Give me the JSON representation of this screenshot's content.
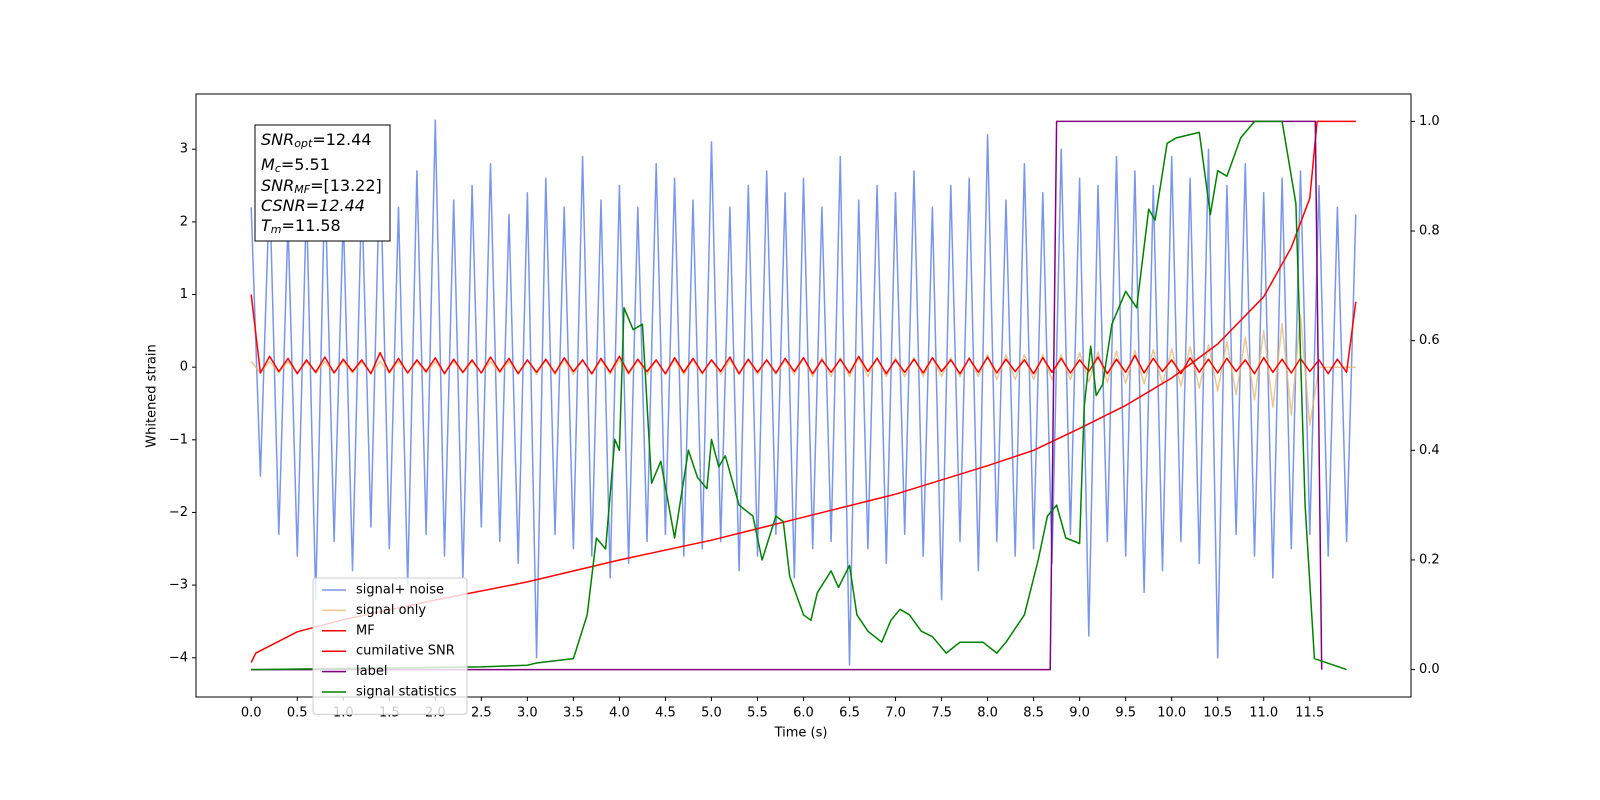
{
  "chart_data": {
    "type": "line",
    "xlabel": "Time (s)",
    "ylabel": "Whitened strain",
    "xlim": [
      -0.6,
      12.6
    ],
    "ylim": [
      -4.54,
      3.76
    ],
    "y2lim": [
      -0.05,
      1.05
    ],
    "xticks": [
      {
        "value": 0,
        "label": "0.0"
      },
      0.5,
      {
        "value": 1,
        "label": "1.0"
      },
      1.5,
      {
        "value": 2,
        "label": "2.0"
      },
      2.5,
      {
        "value": 3,
        "label": "3.0"
      },
      3.5,
      {
        "value": 4,
        "label": "4.0"
      },
      4.5,
      {
        "value": 5,
        "label": "5.0"
      },
      5.5,
      {
        "value": 6,
        "label": "6.0"
      },
      6.5,
      {
        "value": 7,
        "label": "7.0"
      },
      7.5,
      {
        "value": 8,
        "label": "8.0"
      },
      8.5,
      {
        "value": 9,
        "label": "9.0"
      },
      9.5,
      {
        "value": 10,
        "label": "10.0"
      },
      10.5,
      {
        "value": 11,
        "label": "11.0"
      },
      11.5
    ],
    "yticks": [
      {
        "value": -4,
        "label": "−4"
      },
      {
        "value": -3,
        "label": "−3"
      },
      {
        "value": -2,
        "label": "−2"
      },
      {
        "value": -1,
        "label": "−1"
      },
      0,
      1,
      2,
      3
    ],
    "y2ticks": [
      {
        "value": 0,
        "label": "0.0"
      },
      0.2,
      0.4,
      0.6,
      0.8,
      {
        "value": 1,
        "label": "1.0"
      }
    ],
    "legend": "lower left",
    "annotation": [
      [
        "SNR",
        "opt",
        "=12.44"
      ],
      [
        "M",
        "c",
        "=5.51"
      ],
      [
        "SNR",
        "MF",
        "=[13.22]"
      ],
      [
        "CSNR=12.44"
      ],
      [
        "T",
        "m",
        "=11.58"
      ]
    ],
    "x": [
      0,
      0.1,
      0.2,
      0.3,
      0.4,
      0.5,
      0.6,
      0.7,
      0.8,
      0.9,
      1,
      1.1,
      1.2,
      1.3,
      1.4,
      1.5,
      1.6,
      1.7,
      1.8,
      1.9,
      2,
      2.1,
      2.2,
      2.3,
      2.4,
      2.5,
      2.6,
      2.7,
      2.8,
      2.9,
      3,
      3.1,
      3.2,
      3.3,
      3.4,
      3.5,
      3.6,
      3.7,
      3.8,
      3.9,
      4,
      4.1,
      4.2,
      4.3,
      4.4,
      4.5,
      4.6,
      4.7,
      4.8,
      4.9,
      5,
      5.1,
      5.2,
      5.3,
      5.4,
      5.5,
      5.6,
      5.7,
      5.8,
      5.9,
      6,
      6.1,
      6.2,
      6.3,
      6.4,
      6.5,
      6.6,
      6.7,
      6.8,
      6.9,
      7,
      7.1,
      7.2,
      7.3,
      7.4,
      7.5,
      7.6,
      7.7,
      7.8,
      7.9,
      8,
      8.1,
      8.2,
      8.3,
      8.4,
      8.5,
      8.6,
      8.7,
      8.8,
      8.9,
      9,
      9.1,
      9.2,
      9.3,
      9.4,
      9.5,
      9.6,
      9.7,
      9.8,
      9.9,
      10,
      10.1,
      10.2,
      10.3,
      10.4,
      10.5,
      10.6,
      10.7,
      10.8,
      10.9,
      11,
      11.1,
      11.2,
      11.3,
      11.4,
      11.5,
      11.6,
      11.7,
      11.8,
      11.9,
      12
    ],
    "series": [
      {
        "name": "signal+ noise",
        "color": "#4169e1",
        "opacity": 0.7,
        "values": [
          2.2,
          -1.5,
          2.5,
          -2.3,
          2.0,
          -2.6,
          2.3,
          -3.2,
          2.6,
          -2.4,
          2.1,
          -2.8,
          2.4,
          -2.2,
          2.9,
          -2.5,
          2.2,
          -3.0,
          2.7,
          -2.3,
          3.4,
          -2.6,
          2.3,
          -2.9,
          2.5,
          -2.2,
          2.8,
          -2.4,
          2.1,
          -2.7,
          2.4,
          -4.0,
          2.6,
          -2.3,
          2.2,
          -2.5,
          2.9,
          -2.6,
          2.3,
          -2.9,
          2.5,
          -2.7,
          2.2,
          -2.4,
          2.8,
          -2.3,
          2.6,
          -2.6,
          2.3,
          -2.5,
          3.1,
          -2.4,
          2.2,
          -2.8,
          2.5,
          -2.6,
          2.7,
          -2.3,
          2.4,
          -2.9,
          2.6,
          -2.5,
          2.2,
          -2.4,
          2.9,
          -4.1,
          2.3,
          -2.5,
          2.5,
          -2.7,
          2.4,
          -2.3,
          2.7,
          -2.6,
          2.2,
          -3.2,
          2.5,
          -2.4,
          2.6,
          -2.8,
          3.2,
          -2.4,
          2.3,
          -2.6,
          2.8,
          -2.5,
          2.4,
          -2.7,
          3.0,
          -2.3,
          2.6,
          -3.7,
          2.5,
          -2.4,
          2.9,
          -2.6,
          2.7,
          -3.1,
          2.5,
          -2.8,
          2.9,
          -2.4,
          2.6,
          -2.7,
          3.0,
          -4.0,
          2.5,
          -2.3,
          2.8,
          -2.6,
          2.4,
          -2.9,
          2.6,
          -2.5,
          2.7,
          -2.3,
          2.5,
          -2.6,
          2.2,
          -2.4,
          2.1
        ]
      },
      {
        "name": "signal only",
        "color": "#e8b46a",
        "opacity": 0.75,
        "values": [
          0.08,
          -0.08,
          0.08,
          -0.08,
          0.08,
          -0.08,
          0.08,
          -0.08,
          0.08,
          -0.08,
          0.08,
          -0.08,
          0.08,
          -0.08,
          0.08,
          -0.08,
          0.08,
          -0.08,
          0.08,
          -0.08,
          0.08,
          -0.08,
          0.08,
          -0.08,
          0.08,
          -0.08,
          0.08,
          -0.08,
          0.08,
          -0.08,
          0.1,
          -0.1,
          0.1,
          -0.1,
          0.1,
          -0.1,
          0.1,
          -0.1,
          0.1,
          -0.1,
          0.1,
          -0.1,
          0.1,
          -0.1,
          0.1,
          -0.1,
          0.1,
          -0.1,
          0.1,
          -0.1,
          0.1,
          -0.1,
          0.1,
          -0.1,
          0.1,
          -0.1,
          0.1,
          -0.1,
          0.1,
          -0.1,
          0.13,
          -0.13,
          0.13,
          -0.13,
          0.13,
          -0.13,
          0.13,
          -0.13,
          0.13,
          -0.13,
          0.13,
          -0.13,
          0.13,
          -0.13,
          0.13,
          -0.13,
          0.13,
          -0.13,
          0.13,
          -0.13,
          0.17,
          -0.17,
          0.17,
          -0.17,
          0.17,
          -0.17,
          0.17,
          -0.17,
          0.17,
          -0.17,
          0.2,
          -0.2,
          0.21,
          -0.21,
          0.22,
          -0.22,
          0.23,
          -0.23,
          0.24,
          -0.24,
          0.25,
          -0.26,
          0.28,
          -0.29,
          0.31,
          -0.33,
          0.35,
          -0.38,
          0.41,
          -0.45,
          0.5,
          -0.55,
          0.6,
          -0.66,
          0.72,
          -0.8,
          0,
          0,
          0,
          0,
          0
        ]
      },
      {
        "name": "MF",
        "color": "#ff0000",
        "opacity": 1,
        "values": [
          1.0,
          -0.08,
          0.15,
          -0.06,
          0.12,
          -0.09,
          0.1,
          -0.07,
          0.14,
          -0.08,
          0.11,
          -0.06,
          0.1,
          -0.09,
          0.2,
          -0.07,
          0.12,
          -0.08,
          0.1,
          -0.06,
          0.13,
          -0.09,
          0.11,
          -0.07,
          0.1,
          -0.08,
          0.14,
          -0.06,
          0.12,
          -0.09,
          0.1,
          -0.07,
          0.11,
          -0.08,
          0.13,
          -0.06,
          0.1,
          -0.09,
          0.12,
          -0.07,
          0.15,
          -0.08,
          0.11,
          -0.06,
          0.1,
          -0.09,
          0.13,
          -0.07,
          0.12,
          -0.08,
          0.1,
          -0.06,
          0.14,
          -0.09,
          0.11,
          -0.07,
          0.1,
          -0.08,
          0.12,
          -0.06,
          0.13,
          -0.09,
          0.1,
          -0.07,
          0.11,
          -0.08,
          0.15,
          -0.06,
          0.12,
          -0.09,
          0.1,
          -0.07,
          0.11,
          -0.08,
          0.13,
          -0.06,
          0.1,
          -0.09,
          0.12,
          -0.07,
          0.14,
          -0.08,
          0.11,
          -0.06,
          0.1,
          -0.09,
          0.13,
          -0.07,
          0.12,
          -0.08,
          0.1,
          -0.06,
          0.14,
          -0.09,
          0.11,
          -0.07,
          0.16,
          -0.08,
          0.12,
          -0.06,
          0.1,
          -0.09,
          0.13,
          -0.07,
          0.11,
          -0.08,
          0.12,
          -0.06,
          0.1,
          -0.09,
          0.13,
          -0.07,
          0.11,
          -0.08,
          0.12,
          -0.06,
          0.1,
          -0.09,
          0.11,
          -0.07,
          0.9
        ]
      },
      {
        "name": "cumilative SNR",
        "color": "#ff0000",
        "axis": "y2",
        "opacity": 1,
        "x": [
          0,
          0.05,
          0.5,
          1,
          2,
          3,
          4,
          5,
          6,
          7,
          8,
          8.5,
          9,
          9.5,
          10,
          10.5,
          11,
          11.3,
          11.5,
          11.58,
          12
        ],
        "values": [
          0.013,
          0.03,
          0.069,
          0.091,
          0.127,
          0.16,
          0.2,
          0.236,
          0.278,
          0.32,
          0.372,
          0.4,
          0.44,
          0.482,
          0.532,
          0.594,
          0.68,
          0.77,
          0.86,
          1.0,
          1.0
        ]
      },
      {
        "name": "label",
        "color": "#800080",
        "axis": "y2",
        "opacity": 1,
        "x": [
          0,
          8.68,
          8.75,
          11.56,
          11.63
        ],
        "values": [
          0,
          0,
          1,
          1,
          0
        ]
      },
      {
        "name": "signal statistics",
        "color": "#008000",
        "axis": "y2",
        "opacity": 1,
        "x": [
          0,
          1,
          2.5,
          3,
          3.1,
          3.5,
          3.65,
          3.75,
          3.85,
          3.95,
          4,
          4.05,
          4.15,
          4.25,
          4.35,
          4.45,
          4.6,
          4.75,
          4.85,
          4.95,
          5,
          5.08,
          5.15,
          5.3,
          5.45,
          5.55,
          5.7,
          5.78,
          5.85,
          6,
          6.08,
          6.15,
          6.3,
          6.38,
          6.5,
          6.58,
          6.7,
          6.85,
          6.95,
          7.05,
          7.15,
          7.28,
          7.4,
          7.55,
          7.7,
          7.95,
          8.1,
          8.2,
          8.4,
          8.55,
          8.65,
          8.75,
          8.85,
          9,
          9.05,
          9.12,
          9.18,
          9.25,
          9.35,
          9.5,
          9.62,
          9.75,
          9.82,
          9.95,
          10.05,
          10.3,
          10.42,
          10.5,
          10.6,
          10.75,
          10.9,
          11.2,
          11.35,
          11.45,
          11.55,
          11.9
        ],
        "values": [
          0,
          0.002,
          0.005,
          0.008,
          0.012,
          0.02,
          0.1,
          0.24,
          0.22,
          0.42,
          0.4,
          0.66,
          0.62,
          0.63,
          0.34,
          0.38,
          0.24,
          0.4,
          0.35,
          0.33,
          0.42,
          0.37,
          0.39,
          0.3,
          0.28,
          0.2,
          0.28,
          0.27,
          0.17,
          0.1,
          0.09,
          0.14,
          0.18,
          0.15,
          0.19,
          0.1,
          0.07,
          0.05,
          0.09,
          0.11,
          0.1,
          0.07,
          0.06,
          0.03,
          0.05,
          0.05,
          0.03,
          0.05,
          0.1,
          0.2,
          0.28,
          0.3,
          0.24,
          0.23,
          0.48,
          0.59,
          0.5,
          0.52,
          0.63,
          0.69,
          0.66,
          0.84,
          0.82,
          0.96,
          0.97,
          0.98,
          0.83,
          0.91,
          0.9,
          0.97,
          1.0,
          1.0,
          0.85,
          0.3,
          0.02,
          0
        ]
      }
    ]
  }
}
